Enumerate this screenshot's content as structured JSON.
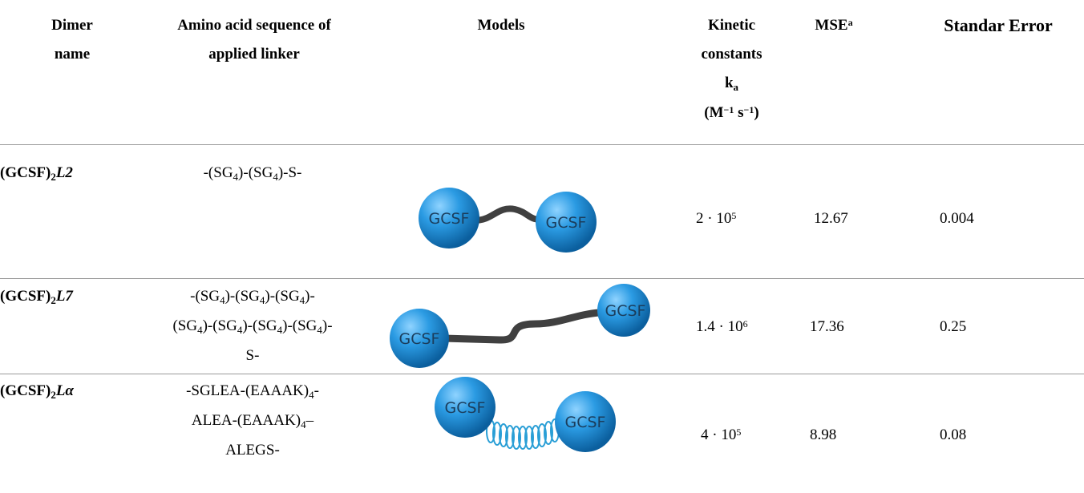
{
  "headers": {
    "dimer_name": [
      "Dimer",
      "name"
    ],
    "sequence": [
      "Amino acid sequence of",
      "applied linker"
    ],
    "models": "Models",
    "kinetic": [
      "Kinetic",
      "constants",
      "k",
      "a",
      "(M",
      "−1",
      " s",
      "−1",
      ")"
    ],
    "mse": [
      "MSE",
      "a"
    ],
    "stderr": "Standar Error"
  },
  "rows": [
    {
      "name": [
        "(GCSF)",
        "2",
        "L2"
      ],
      "sequence_html": "-(SG<sub>4</sub>)-(SG<sub>4</sub>)-S-",
      "ka": [
        "2  · 10",
        "5"
      ],
      "mse": "12.67",
      "stderr": "0.004",
      "model": {
        "left_label": "GCSF",
        "right_label": "GCSF",
        "linker": "short flexible"
      }
    },
    {
      "name": [
        "(GCSF)",
        "2",
        "L7"
      ],
      "sequence_lines": [
        "-(SG4)-(SG4)-(SG4)-",
        "(SG4)-(SG4)-(SG4)-(SG4)-",
        "S-"
      ],
      "ka": [
        "1.4 · 10",
        "6"
      ],
      "mse": "17.36",
      "stderr": "0.25",
      "model": {
        "left_label": "GCSF",
        "right_label": "GCSF",
        "linker": "long flexible"
      }
    },
    {
      "name": [
        "(GCSF)",
        "2",
        "Lα"
      ],
      "sequence_lines": [
        "-SGLEA-(EAAAK)4-",
        "ALEA-(EAAAK)4–",
        "ALEGS-"
      ],
      "ka": [
        "4 · 10",
        "5"
      ],
      "mse": "8.98",
      "stderr": "0.08",
      "model": {
        "left_label": "GCSF",
        "right_label": "GCSF",
        "linker": "helical rigid"
      }
    }
  ],
  "colors": {
    "sphere": "#1f8fd6",
    "linker": "#404040",
    "helix": "#2a9fd6",
    "rule": "#9a9a9a"
  }
}
